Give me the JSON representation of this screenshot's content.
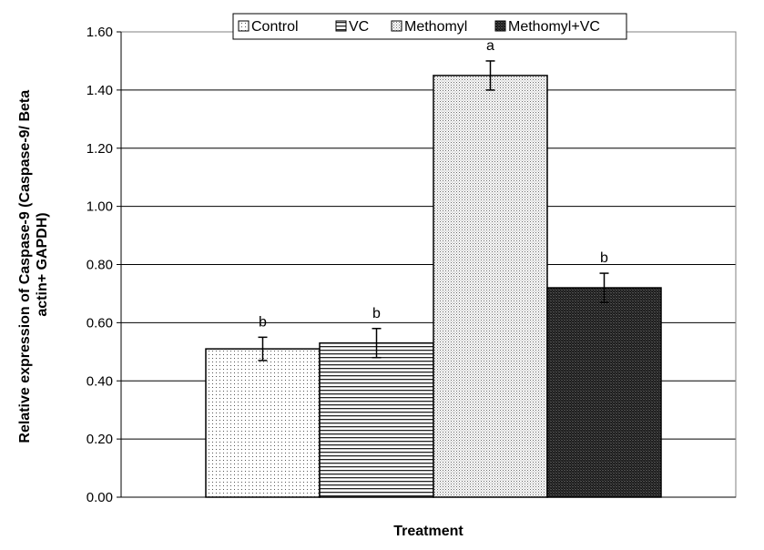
{
  "chart_data": {
    "type": "bar",
    "xlabel": "Treatment",
    "ylabel_lines": [
      "Relative expression of Caspase-9 (Caspase-9/ Beta",
      "actin+ GAPDH)"
    ],
    "ylim": [
      0,
      1.6
    ],
    "yticks": [
      "0.00",
      "0.20",
      "0.40",
      "0.60",
      "0.80",
      "1.00",
      "1.20",
      "1.40",
      "1.60"
    ],
    "grid": "horizontal",
    "legend_position": "top",
    "series": [
      {
        "name": "Control",
        "value": 0.51,
        "error": 0.04,
        "label": "b",
        "pattern": "dots-sparse"
      },
      {
        "name": "VC",
        "value": 0.53,
        "error": 0.05,
        "label": "b",
        "pattern": "horizontal-lines"
      },
      {
        "name": "Methomyl",
        "value": 1.45,
        "error": 0.05,
        "label": "a",
        "pattern": "dots-dense"
      },
      {
        "name": "Methomyl+VC",
        "value": 0.72,
        "error": 0.05,
        "label": "b",
        "pattern": "checker-dark"
      }
    ]
  }
}
